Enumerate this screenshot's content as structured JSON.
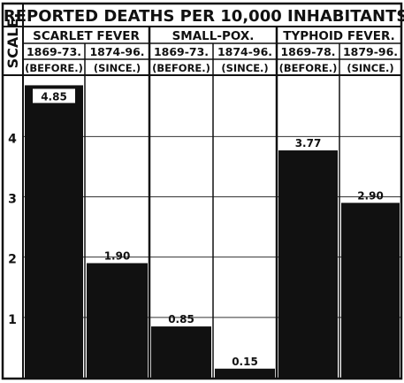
{
  "chart_data": {
    "type": "bar",
    "title": "REPORTED DEATHS PER 10,000 INHABITANTS.",
    "scale_label": "SCALE.",
    "ylim": [
      0,
      5
    ],
    "yticks": [
      1,
      2,
      3,
      4
    ],
    "grid": true,
    "groups": [
      {
        "name": "SCARLET FEVER",
        "bars": [
          {
            "period": "1869-73.",
            "label": "(BEFORE.)",
            "value": 4.85,
            "display": "4.85"
          },
          {
            "period": "1874-96.",
            "label": "(SINCE.)",
            "value": 1.9,
            "display": "1.90"
          }
        ]
      },
      {
        "name": "SMALL-POX.",
        "bars": [
          {
            "period": "1869-73.",
            "label": "(BEFORE.)",
            "value": 0.85,
            "display": "0.85"
          },
          {
            "period": "1874-96.",
            "label": "(SINCE.)",
            "value": 0.15,
            "display": "0.15"
          }
        ]
      },
      {
        "name": "TYPHOID FEVER.",
        "bars": [
          {
            "period": "1869-78.",
            "label": "(BEFORE.)",
            "value": 3.77,
            "display": "3.77"
          },
          {
            "period": "1879-96.",
            "label": "(SINCE.)",
            "value": 2.9,
            "display": "2.90"
          }
        ]
      }
    ]
  }
}
